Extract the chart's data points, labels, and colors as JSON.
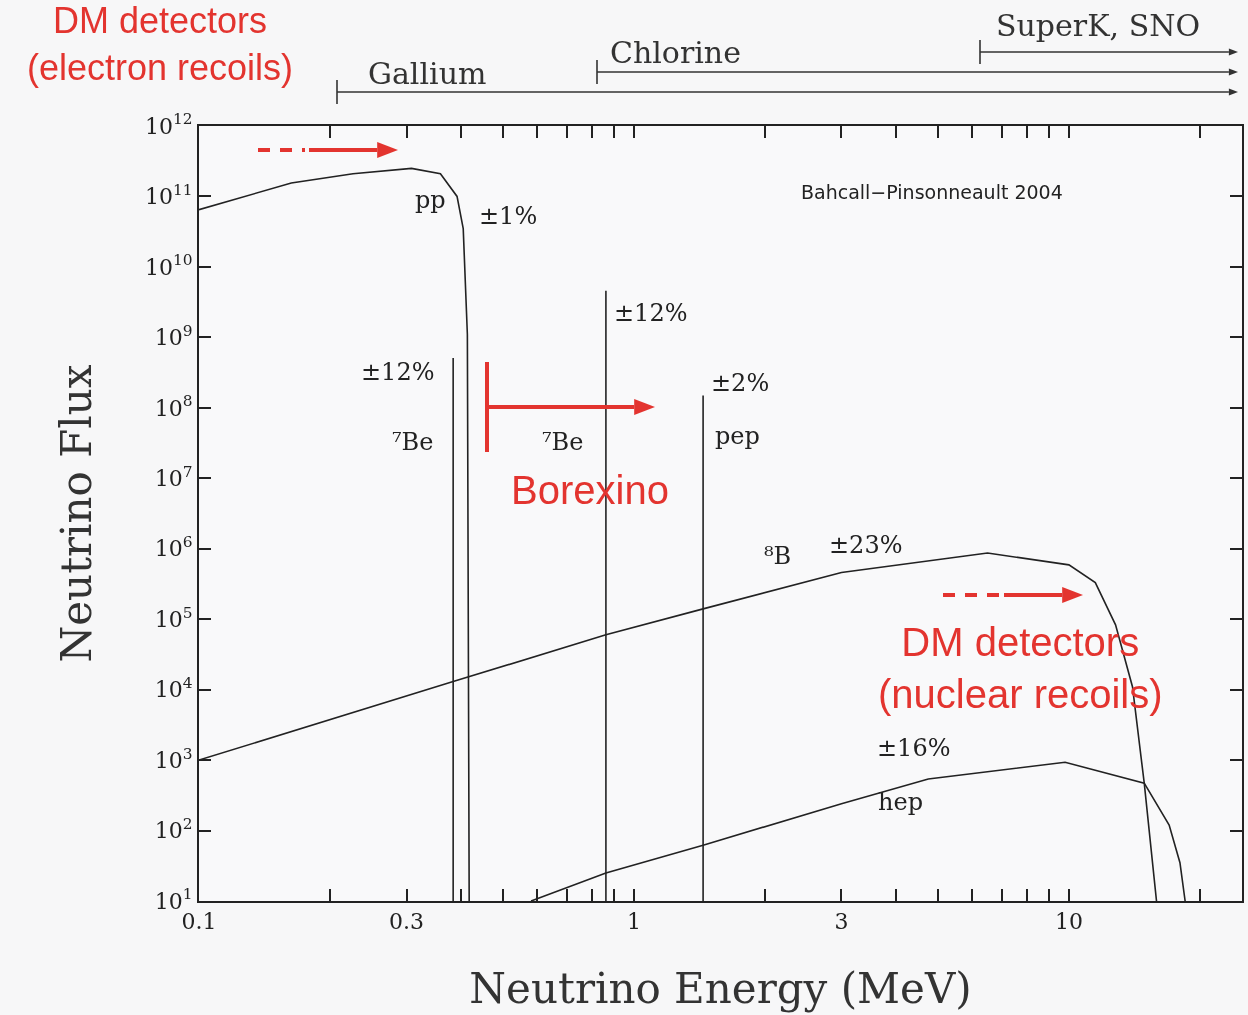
{
  "chart_data": {
    "type": "line",
    "xlabel": "Neutrino Energy (MeV)",
    "ylabel": "Neutrino Flux",
    "log": "xy",
    "grid": false,
    "marker": "none",
    "line_style": "solid",
    "xlim": [
      0.1,
      25
    ],
    "ylim": [
      10,
      1000000000000
    ],
    "xticks": [
      0.1,
      {
        "value": 0.2,
        "label": null
      },
      0.3,
      {
        "value": 0.4,
        "label": null
      },
      {
        "value": 0.5,
        "label": null
      },
      {
        "value": 0.6,
        "label": null
      },
      {
        "value": 0.7,
        "label": null
      },
      {
        "value": 0.8,
        "label": null
      },
      {
        "value": 0.9,
        "label": null
      },
      1,
      {
        "value": 2,
        "label": null
      },
      3,
      {
        "value": 4,
        "label": null
      },
      {
        "value": 5,
        "label": null
      },
      {
        "value": 6,
        "label": null
      },
      {
        "value": 7,
        "label": null
      },
      {
        "value": 8,
        "label": null
      },
      {
        "value": 9,
        "label": null
      },
      10,
      {
        "value": 20,
        "label": null
      }
    ],
    "yticks": [
      {
        "value": 10,
        "label": "10$^{1}$"
      },
      {
        "value": 100,
        "label": "10$^{2}$"
      },
      {
        "value": 1000,
        "label": "10$^{3}$"
      },
      {
        "value": 10000,
        "label": "10$^{4}$"
      },
      {
        "value": 100000,
        "label": "10$^{5}$"
      },
      {
        "value": 1000000,
        "label": "10$^{6}$"
      },
      {
        "value": 10000000,
        "label": "10$^{7}$"
      },
      {
        "value": 100000000,
        "label": "10$^{8}$"
      },
      {
        "value": 1000000000,
        "label": "10$^{9}$"
      },
      {
        "value": 10000000000,
        "label": "10$^{10}$"
      },
      {
        "value": 100000000000,
        "label": "10$^{11}$"
      },
      {
        "value": 1000000000000,
        "label": "10$^{12}$"
      }
    ],
    "series": [
      {
        "color": "#222222",
        "x": [
          0.1,
          0.163,
          0.226,
          0.308,
          0.359,
          0.392,
          0.405,
          0.414,
          0.418
        ],
        "values": [
          65000000000,
          155000000000,
          210000000000,
          250000000000,
          210000000000,
          100000000000,
          35000000000,
          1100000000,
          10
        ]
      },
      {
        "color": "#222222",
        "x": [
          0.384,
          0.384
        ],
        "values": [
          10,
          510000000
        ]
      },
      {
        "color": "#222222",
        "x": [
          0.862,
          0.862
        ],
        "values": [
          10,
          4600000000
        ]
      },
      {
        "color": "#222222",
        "x": [
          1.442,
          1.442
        ],
        "values": [
          10,
          150000000
        ]
      },
      {
        "color": "#222222",
        "x": [
          0.1,
          0.384,
          0.862,
          1.442,
          3,
          6.5,
          10,
          11.5,
          12.8,
          14,
          14.9,
          15.9
        ],
        "values": [
          1000,
          13000,
          60000,
          140000,
          460000,
          870000,
          590000,
          330000,
          83000,
          11000,
          470,
          10
        ]
      },
      {
        "color": "#222222",
        "x": [
          0.58,
          0.862,
          1.442,
          3,
          4.75,
          9.8,
          14.9,
          17,
          18,
          18.5
        ],
        "values": [
          10,
          25,
          62,
          240,
          540,
          930,
          470,
          120,
          35,
          10
        ]
      }
    ],
    "annotations": [
      "DM detectors\n(electron recoils)",
      "Gallium",
      "Chlorine",
      "SuperK, SNO",
      "Borexino",
      "DM detectors\n(nuclear recoils)",
      "pp",
      "±1%",
      "±12%",
      "⁷Be",
      "⁷Be",
      "±12%",
      "±2%",
      "pep",
      "⁸B",
      "±23%",
      "±16%",
      "hep",
      "Bahcall−Pinsonneault 2004"
    ]
  }
}
